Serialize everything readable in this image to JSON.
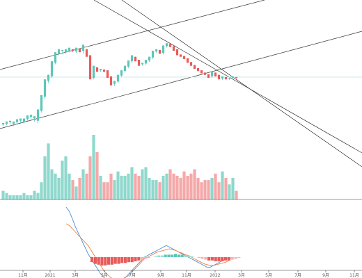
{
  "colors": {
    "up": "#e85a5a",
    "down": "#5cc7b8",
    "up_light": "#f5a8a8",
    "down_light": "#8fd8cd",
    "trendline": "#333333",
    "dif": "#4a8fd6",
    "dea": "#f08040",
    "macd_pos_light": "#9be0d3",
    "macd_neg_light": "#f7b3b3",
    "hline": "#bfe6e8",
    "axis": "#333333"
  },
  "axis": {
    "x_ticks": [
      "11月",
      "2021",
      "3月",
      "5月",
      "7月",
      "9月",
      "11月",
      "2022",
      "3月",
      "5月",
      "7月",
      "9月",
      "11月"
    ]
  },
  "chart_data": [
    {
      "type": "candlestick",
      "title": "",
      "x": [
        "2020-10",
        "2020-10",
        "2020-11",
        "2020-11",
        "2020-11",
        "2020-11",
        "2020-12",
        "2020-12",
        "2020-12",
        "2020-12",
        "2021-01",
        "2021-01",
        "2021-01",
        "2021-01",
        "2021-02",
        "2021-02",
        "2021-02",
        "2021-02",
        "2021-03",
        "2021-03",
        "2021-03",
        "2021-03",
        "2021-04",
        "2021-04",
        "2021-04",
        "2021-04",
        "2021-05",
        "2021-05",
        "2021-05",
        "2021-05",
        "2021-06",
        "2021-06",
        "2021-06",
        "2021-06",
        "2021-07",
        "2021-07",
        "2021-07",
        "2021-07",
        "2021-08",
        "2021-08",
        "2021-08",
        "2021-08",
        "2021-09",
        "2021-09",
        "2021-09",
        "2021-09",
        "2021-10",
        "2021-10",
        "2021-10",
        "2021-10",
        "2021-11",
        "2021-11",
        "2021-11",
        "2021-11",
        "2021-12",
        "2021-12",
        "2021-12",
        "2021-12",
        "2022-01",
        "2022-01",
        "2022-01",
        "2022-01",
        "2022-02",
        "2022-02",
        "2022-02",
        "2022-02",
        "2022-03",
        "2022-03"
      ],
      "ohlc": [
        [
          170,
          168,
          172,
          169
        ],
        [
          169,
          166,
          171,
          167
        ],
        [
          167,
          165,
          170,
          169
        ],
        [
          169,
          166,
          172,
          167
        ],
        [
          167,
          163,
          170,
          165
        ],
        [
          165,
          162,
          168,
          167
        ],
        [
          167,
          162,
          169,
          163
        ],
        [
          163,
          158,
          165,
          160
        ],
        [
          160,
          157,
          163,
          162
        ],
        [
          162,
          159,
          166,
          165
        ],
        [
          165,
          150,
          168,
          152
        ],
        [
          152,
          131,
          154,
          133
        ],
        [
          133,
          110,
          136,
          112
        ],
        [
          112,
          104,
          115,
          106
        ],
        [
          106,
          86,
          108,
          88
        ],
        [
          88,
          74,
          90,
          76
        ],
        [
          76,
          70,
          78,
          72
        ],
        [
          72,
          71,
          76,
          74
        ],
        [
          74,
          70,
          76,
          72
        ],
        [
          72,
          68,
          74,
          70
        ],
        [
          70,
          72,
          74,
          73
        ],
        [
          73,
          68,
          75,
          69
        ],
        [
          69,
          74,
          71,
          72
        ],
        [
          72,
          64,
          76,
          70
        ],
        [
          70,
          80,
          71,
          78
        ],
        [
          78,
          110,
          79,
          108
        ],
        [
          108,
          92,
          110,
          94
        ],
        [
          94,
          100,
          96,
          98
        ],
        [
          98,
          96,
          100,
          97
        ],
        [
          97,
          100,
          99,
          98
        ],
        [
          98,
          108,
          100,
          106
        ],
        [
          106,
          118,
          108,
          116
        ],
        [
          116,
          112,
          119,
          113
        ],
        [
          113,
          104,
          115,
          105
        ],
        [
          105,
          98,
          107,
          99
        ],
        [
          99,
          92,
          101,
          93
        ],
        [
          93,
          85,
          95,
          86
        ],
        [
          86,
          78,
          88,
          80
        ],
        [
          80,
          86,
          82,
          84
        ],
        [
          84,
          92,
          86,
          90
        ],
        [
          90,
          88,
          92,
          89
        ],
        [
          89,
          84,
          91,
          85
        ],
        [
          85,
          80,
          87,
          81
        ],
        [
          81,
          72,
          83,
          73
        ],
        [
          73,
          70,
          75,
          71
        ],
        [
          71,
          76,
          73,
          75
        ],
        [
          75,
          65,
          77,
          66
        ],
        [
          66,
          62,
          68,
          63
        ],
        [
          63,
          67,
          65,
          66
        ],
        [
          66,
          72,
          68,
          70
        ],
        [
          70,
          78,
          72,
          77
        ],
        [
          77,
          80,
          79,
          79
        ],
        [
          79,
          83,
          81,
          82
        ],
        [
          82,
          88,
          84,
          87
        ],
        [
          87,
          92,
          89,
          91
        ],
        [
          91,
          96,
          93,
          95
        ],
        [
          95,
          99,
          97,
          98
        ],
        [
          98,
          102,
          100,
          101
        ],
        [
          101,
          104,
          103,
          103
        ],
        [
          103,
          108,
          105,
          106
        ],
        [
          106,
          100,
          108,
          101
        ],
        [
          101,
          106,
          103,
          104
        ],
        [
          104,
          110,
          106,
          109
        ],
        [
          109,
          106,
          111,
          107
        ],
        [
          107,
          110,
          109,
          109
        ],
        [
          109,
          108,
          111,
          108
        ],
        [
          108,
          106,
          110,
          107
        ],
        [
          107,
          108,
          109,
          108
        ]
      ],
      "hline": 107
    },
    {
      "type": "bar",
      "title": "",
      "series": [
        {
          "values": [
            4,
            3,
            2,
            2,
            2,
            2,
            3,
            2,
            2,
            4,
            3,
            8,
            20,
            26,
            14,
            12,
            10,
            18,
            20,
            12,
            9,
            6,
            10,
            14,
            12,
            20,
            30,
            22,
            11,
            8,
            8,
            12,
            9,
            13,
            11,
            11,
            12,
            15,
            12,
            11,
            14,
            15,
            10,
            9,
            9,
            8,
            11,
            12,
            14,
            12,
            11,
            10,
            13,
            11,
            12,
            14,
            10,
            8,
            9,
            9,
            10,
            12,
            8,
            13,
            10,
            7,
            10,
            4
          ]
        }
      ],
      "categories_ref": "same as candlestick x"
    },
    {
      "type": "line",
      "title": "",
      "series": [
        {
          "values": [
            60,
            55,
            46,
            36,
            28,
            20,
            12,
            4,
            -2,
            -8,
            -14,
            -20,
            -24,
            -28,
            -30,
            -31,
            -32,
            -30,
            -28,
            -24,
            -20,
            -16,
            -12,
            -8,
            -4,
            0,
            2,
            4,
            6,
            8,
            10,
            12,
            14,
            12,
            10,
            8,
            6,
            4,
            2,
            0,
            -2,
            -4,
            -6,
            -8,
            -10,
            -12,
            -12,
            -10,
            -8,
            -6,
            -4,
            -2,
            0
          ]
        },
        {
          "values": [
            40,
            38,
            34,
            30,
            26,
            22,
            18,
            14,
            8,
            2,
            -4,
            -10,
            -16,
            -20,
            -24,
            -26,
            -28,
            -28,
            -26,
            -24,
            -22,
            -18,
            -14,
            -10,
            -6,
            -2,
            0,
            2,
            4,
            6,
            7,
            8,
            9,
            10,
            9,
            8,
            6,
            5,
            3,
            2,
            0,
            -2,
            -4,
            -6,
            -8,
            -9,
            -10,
            -10,
            -9,
            -8,
            -7,
            -6,
            -4
          ]
        }
      ],
      "macd_hist": [
        -6,
        -8,
        -9,
        -10,
        -10,
        -9,
        -9,
        -8,
        -8,
        -7,
        -7,
        -6,
        -6,
        -5,
        -4,
        -3,
        -2,
        -1,
        0,
        1,
        2,
        2,
        3,
        3,
        3,
        4,
        3,
        3,
        2,
        2,
        1,
        0,
        -1,
        -2,
        -3,
        -4,
        -4,
        -5,
        -5,
        -5,
        -4,
        -4,
        -3,
        -2,
        -1
      ]
    }
  ]
}
